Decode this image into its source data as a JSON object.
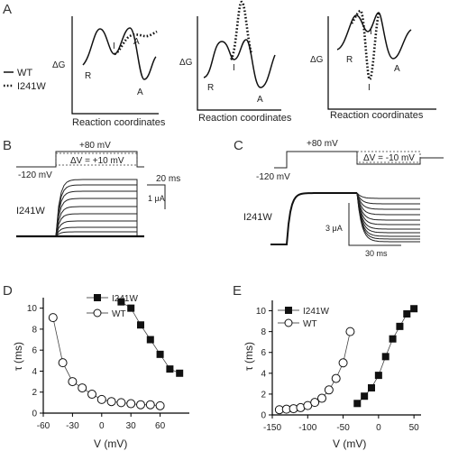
{
  "panels": {
    "A": {
      "label": "A"
    },
    "B": {
      "label": "B"
    },
    "C": {
      "label": "C"
    },
    "D": {
      "label": "D"
    },
    "E": {
      "label": "E"
    }
  },
  "panel_a": {
    "legend": {
      "wt": "WT",
      "mutant": "I241W"
    },
    "diagrams": [
      {
        "ylabel": "ΔG",
        "xlabel": "Reaction coordinates",
        "state_labels": [
          "R",
          "I",
          "A",
          "A"
        ]
      },
      {
        "ylabel": "ΔG",
        "xlabel": "Reaction coordinates",
        "state_labels": [
          "R",
          "I",
          "A"
        ]
      },
      {
        "ylabel": "ΔG",
        "xlabel": "Reaction coordinates",
        "state_labels": [
          "R",
          "I",
          "A",
          "I"
        ]
      }
    ]
  },
  "panel_b": {
    "step_voltage": "+80 mV",
    "delta_v": "ΔV = +10 mV",
    "holding": "-120 mV",
    "time_scale": "20 ms",
    "current_scale": "1 μA",
    "construct": "I241W"
  },
  "panel_c": {
    "step_voltage": "+80 mV",
    "delta_v": "ΔV = -10 mV",
    "holding": "-120 mV",
    "current_scale": "3 μA",
    "time_scale": "30 ms",
    "construct": "I241W"
  },
  "chart_data": [
    {
      "type": "scatter",
      "panel": "D",
      "xlabel": "V (mV)",
      "ylabel": "τ (ms)",
      "xlim": [
        -60,
        90
      ],
      "ylim": [
        0,
        11
      ],
      "xticks": [
        -60,
        -30,
        0,
        30,
        60
      ],
      "yticks": [
        0,
        2,
        4,
        6,
        8,
        10
      ],
      "grid": false,
      "legend_position": "top-center",
      "series": [
        {
          "name": "I241W",
          "marker": "filled-square",
          "x": [
            20,
            30,
            40,
            50,
            60,
            70,
            80
          ],
          "y": [
            10.6,
            10.0,
            8.4,
            7.0,
            5.6,
            4.2,
            3.8
          ]
        },
        {
          "name": "WT",
          "marker": "open-circle",
          "x": [
            -50,
            -40,
            -30,
            -20,
            -10,
            0,
            10,
            20,
            30,
            40,
            50,
            60
          ],
          "y": [
            9.1,
            4.8,
            3.0,
            2.4,
            1.8,
            1.3,
            1.1,
            1.0,
            0.9,
            0.8,
            0.8,
            0.7
          ]
        }
      ]
    },
    {
      "type": "scatter",
      "panel": "E",
      "xlabel": "V (mV)",
      "ylabel": "τ (ms)",
      "xlim": [
        -150,
        60
      ],
      "ylim": [
        0,
        11
      ],
      "xticks": [
        -150,
        -100,
        -50,
        0,
        50
      ],
      "yticks": [
        0,
        2,
        4,
        6,
        8,
        10
      ],
      "grid": false,
      "legend_position": "top-left",
      "series": [
        {
          "name": "I241W",
          "marker": "filled-square",
          "x": [
            -30,
            -20,
            -10,
            0,
            10,
            20,
            30,
            40,
            50
          ],
          "y": [
            1.1,
            1.8,
            2.6,
            3.8,
            5.6,
            7.3,
            8.5,
            9.7,
            10.2
          ]
        },
        {
          "name": "WT",
          "marker": "open-circle",
          "x": [
            -140,
            -130,
            -120,
            -110,
            -100,
            -90,
            -80,
            -70,
            -60,
            -50,
            -40
          ],
          "y": [
            0.5,
            0.55,
            0.6,
            0.7,
            0.9,
            1.2,
            1.6,
            2.4,
            3.5,
            5.0,
            8.0
          ]
        }
      ]
    }
  ]
}
